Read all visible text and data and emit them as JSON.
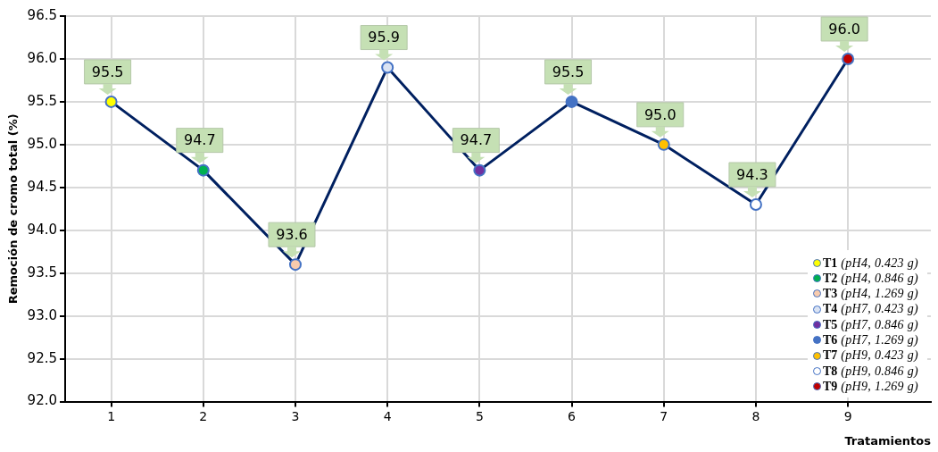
{
  "chart_data": {
    "type": "line",
    "xlabel": "Tratamientos",
    "ylabel": "Remoción de cromo total (%)",
    "categories": [
      "1",
      "2",
      "3",
      "4",
      "5",
      "6",
      "7",
      "8",
      "9"
    ],
    "ylim": [
      92.0,
      96.5
    ],
    "yticks": [
      {
        "value": 92,
        "label": "92.0"
      },
      {
        "value": 92.5,
        "label": "92.5"
      },
      {
        "value": 93,
        "label": "93.0"
      },
      {
        "value": 93.5,
        "label": "93.5"
      },
      {
        "value": 94,
        "label": "94.0"
      },
      {
        "value": 94.5,
        "label": "94.5"
      },
      {
        "value": 95,
        "label": "95.0"
      },
      {
        "value": 95.5,
        "label": "95.5"
      },
      {
        "value": 96,
        "label": "96.0"
      },
      {
        "value": 96.5,
        "label": "96.5"
      }
    ],
    "grid": true,
    "legend": "bottom right",
    "line_style": "solid",
    "series": [
      {
        "color": "#002060",
        "marker": "none",
        "values": [
          95.5,
          94.7,
          93.6,
          95.9,
          94.7,
          95.5,
          95.0,
          94.3,
          96.0
        ],
        "value_labels": [
          "95.5",
          "94.7",
          "93.6",
          "95.9",
          "94.7",
          "95.5",
          "95.0",
          "94.3",
          "96.0"
        ]
      },
      {
        "type": "scatter",
        "name": "T1 (pH4, 0.423 g)",
        "color": "#ffff00",
        "marker": "circle",
        "x": [
          "1"
        ],
        "values": [
          95.5
        ]
      },
      {
        "type": "scatter",
        "name": "T2 (pH4, 0.846 g)",
        "color": "#00b050",
        "marker": "circle",
        "x": [
          "2"
        ],
        "values": [
          94.7
        ]
      },
      {
        "type": "scatter",
        "name": "T3 (pH4, 1.269 g)",
        "color": "#f8cbad",
        "marker": "circle",
        "x": [
          "3"
        ],
        "values": [
          93.6
        ]
      },
      {
        "type": "scatter",
        "name": "T4 (pH7, 0.423 g)",
        "color": "#dae3f3",
        "marker": "circle",
        "x": [
          "4"
        ],
        "values": [
          95.9
        ]
      },
      {
        "type": "scatter",
        "name": "T5 (pH7, 0.846 g)",
        "color": "#7030a0",
        "marker": "circle",
        "x": [
          "5"
        ],
        "values": [
          94.7
        ]
      },
      {
        "type": "scatter",
        "name": "T6 (pH7, 1.269 g)",
        "color": "#4472c4",
        "marker": "circle",
        "x": [
          "6"
        ],
        "values": [
          95.5
        ]
      },
      {
        "type": "scatter",
        "name": "T7 (pH9, 0.423 g)",
        "color": "#ffc000",
        "marker": "circle",
        "x": [
          "7"
        ],
        "values": [
          95.0
        ]
      },
      {
        "type": "scatter",
        "name": "T8 (pH9, 0.846 g)",
        "color": "#ffffff",
        "marker": "circle",
        "x": [
          "8"
        ],
        "values": [
          94.3
        ]
      },
      {
        "type": "scatter",
        "name": "T9 (pH9, 1.269 g)",
        "color": "#c00000",
        "marker": "circle",
        "x": [
          "9"
        ],
        "values": [
          96.0
        ]
      }
    ]
  }
}
